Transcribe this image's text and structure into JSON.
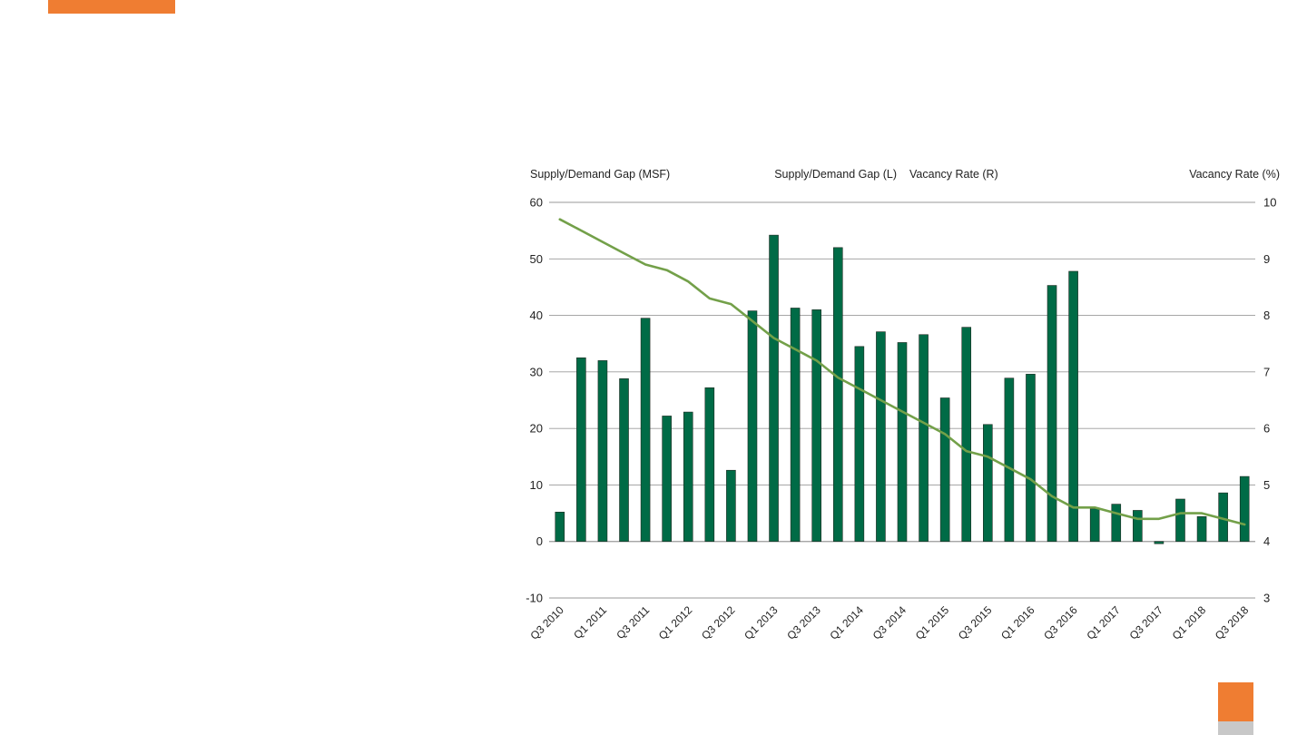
{
  "colors": {
    "accent_orange": "#ef7d32",
    "accent_gray": "#c8c8c8",
    "bar_green": "#006b46",
    "line_green": "#73a049",
    "grid": "#9a9a9a",
    "legend_bar_text": "#0b6b3c",
    "legend_line_text": "#5c8a34"
  },
  "chart_data": {
    "type": "bar",
    "ylabel_left": "Supply/Demand Gap (MSF)",
    "ylabel_right": "Vacancy Rate (%)",
    "ylim_left": [
      -10,
      60
    ],
    "ylim_right": [
      3,
      10
    ],
    "yticks_left": [
      -10,
      0,
      10,
      20,
      30,
      40,
      50,
      60
    ],
    "yticks_right": [
      3,
      4,
      5,
      6,
      7,
      8,
      9,
      10
    ],
    "grid": true,
    "legend_position": "top-center",
    "categories": [
      "Q3 2010",
      "Q4 2010",
      "Q1 2011",
      "Q2 2011",
      "Q3 2011",
      "Q4 2011",
      "Q1 2012",
      "Q2 2012",
      "Q3 2012",
      "Q4 2012",
      "Q1 2013",
      "Q2 2013",
      "Q3 2013",
      "Q4 2013",
      "Q1 2014",
      "Q2 2014",
      "Q3 2014",
      "Q4 2014",
      "Q1 2015",
      "Q2 2015",
      "Q3 2015",
      "Q4 2015",
      "Q1 2016",
      "Q2 2016",
      "Q3 2016",
      "Q4 2016",
      "Q1 2017",
      "Q2 2017",
      "Q3 2017",
      "Q4 2017",
      "Q1 2018",
      "Q2 2018",
      "Q3 2018"
    ],
    "xtick_labels": [
      "Q3 2010",
      "Q1 2011",
      "Q3 2011",
      "Q1 2012",
      "Q3 2012",
      "Q1 2013",
      "Q3 2013",
      "Q1 2014",
      "Q3 2014",
      "Q1 2015",
      "Q3 2015",
      "Q1 2016",
      "Q3 2016",
      "Q1 2017",
      "Q3 2017",
      "Q1 2018",
      "Q3 2018"
    ],
    "series": [
      {
        "name": "Supply/Demand Gap (L)",
        "type": "bar",
        "axis": "left",
        "values": [
          5.2,
          32.5,
          32.0,
          28.8,
          39.5,
          22.2,
          22.9,
          27.2,
          12.6,
          40.8,
          54.2,
          41.3,
          41.0,
          52.0,
          34.5,
          37.1,
          35.2,
          36.6,
          25.4,
          37.9,
          20.7,
          28.9,
          29.6,
          45.3,
          47.8,
          5.8,
          6.6,
          5.5,
          -0.4,
          7.5,
          4.4,
          8.6,
          11.5
        ]
      },
      {
        "name": "Vacancy Rate (R)",
        "type": "line",
        "axis": "right",
        "values": [
          9.7,
          9.5,
          9.3,
          9.1,
          8.9,
          8.8,
          8.6,
          8.3,
          8.2,
          7.9,
          7.6,
          7.4,
          7.2,
          6.9,
          6.7,
          6.5,
          6.3,
          6.1,
          5.9,
          5.6,
          5.5,
          5.3,
          5.1,
          4.8,
          4.6,
          4.6,
          4.5,
          4.4,
          4.4,
          4.5,
          4.5,
          4.4,
          4.3
        ]
      }
    ]
  }
}
